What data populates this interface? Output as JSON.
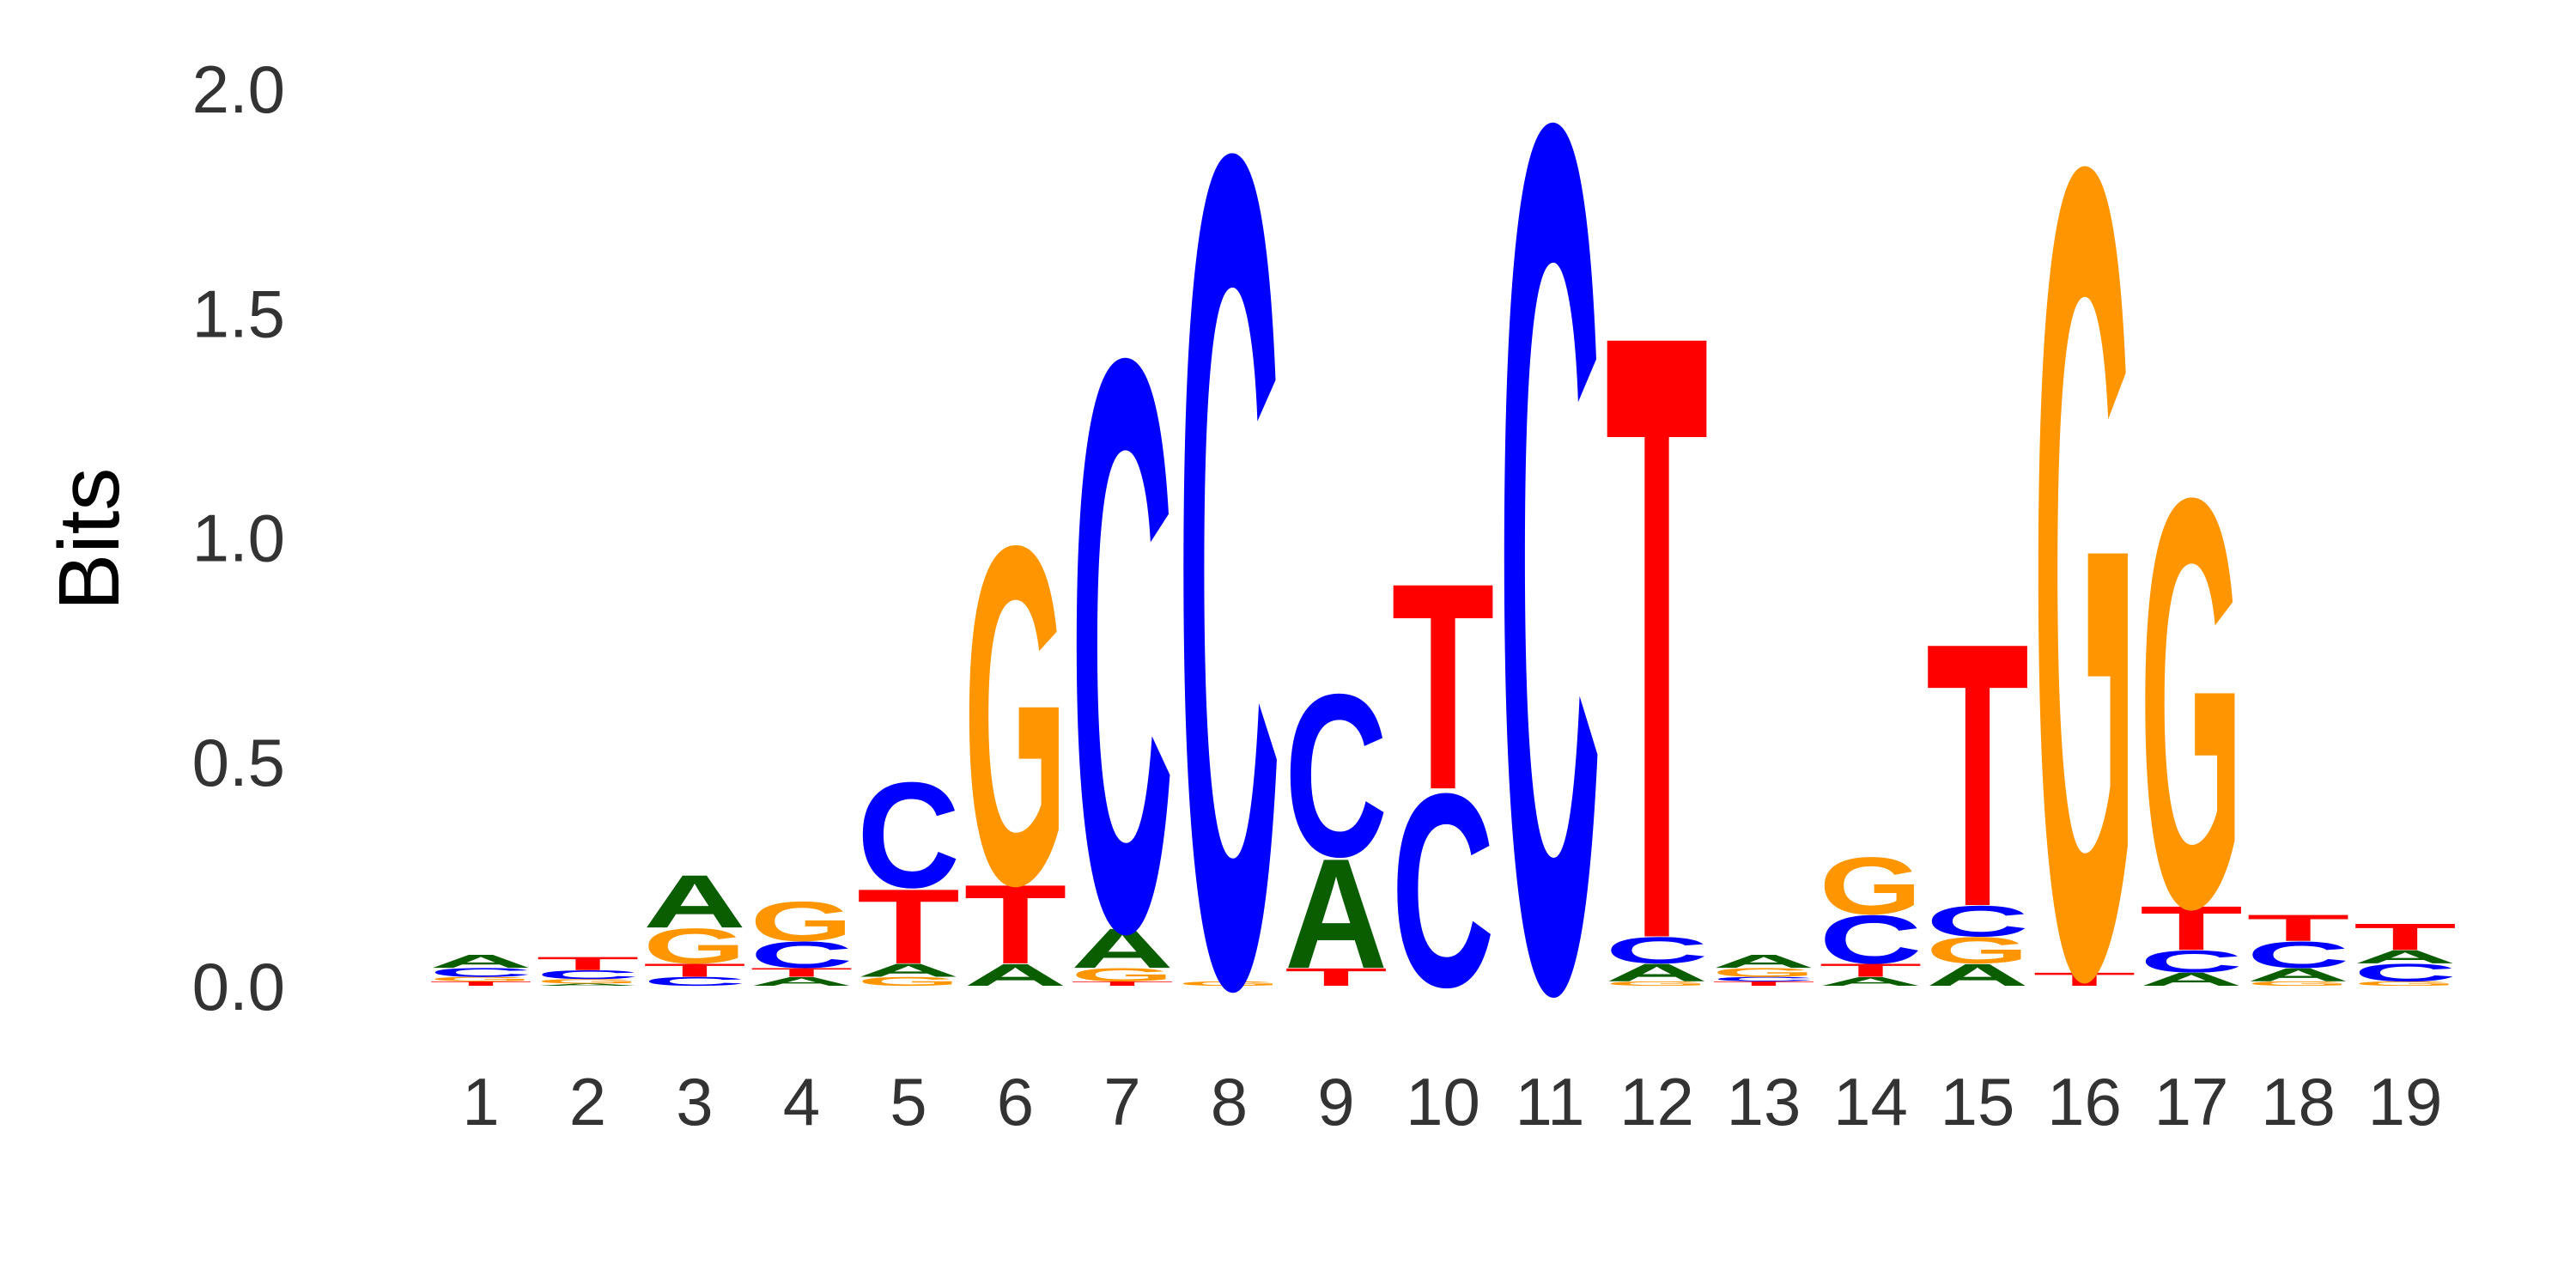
{
  "chart_data": {
    "type": "sequence-logo",
    "ylabel": "Bits",
    "ylim": [
      0,
      2.0
    ],
    "yticks": [
      "0.0",
      "0.5",
      "1.0",
      "1.5",
      "2.0"
    ],
    "grid": false,
    "colors": {
      "A": "#0b5e00",
      "C": "#0000ff",
      "G": "#ff9500",
      "T": "#ff0000"
    },
    "positions": [
      {
        "label": "1",
        "letters": [
          {
            "b": "T",
            "h": 0.01
          },
          {
            "b": "G",
            "h": 0.01
          },
          {
            "b": "C",
            "h": 0.02
          },
          {
            "b": "A",
            "h": 0.03
          }
        ]
      },
      {
        "label": "2",
        "letters": [
          {
            "b": "A",
            "h": 0.005
          },
          {
            "b": "G",
            "h": 0.01
          },
          {
            "b": "C",
            "h": 0.02
          },
          {
            "b": "T",
            "h": 0.03
          }
        ]
      },
      {
        "label": "3",
        "letters": [
          {
            "b": "C",
            "h": 0.02
          },
          {
            "b": "T",
            "h": 0.03
          },
          {
            "b": "G",
            "h": 0.08
          },
          {
            "b": "A",
            "h": 0.12
          }
        ]
      },
      {
        "label": "4",
        "letters": [
          {
            "b": "A",
            "h": 0.02
          },
          {
            "b": "T",
            "h": 0.02
          },
          {
            "b": "C",
            "h": 0.06
          },
          {
            "b": "G",
            "h": 0.09
          }
        ]
      },
      {
        "label": "5",
        "letters": [
          {
            "b": "G",
            "h": 0.02
          },
          {
            "b": "A",
            "h": 0.03
          },
          {
            "b": "T",
            "h": 0.17
          },
          {
            "b": "C",
            "h": 0.24
          }
        ]
      },
      {
        "label": "6",
        "letters": [
          {
            "b": "A",
            "h": 0.05
          },
          {
            "b": "T",
            "h": 0.18
          },
          {
            "b": "G",
            "h": 0.77
          }
        ]
      },
      {
        "label": "7",
        "letters": [
          {
            "b": "T",
            "h": 0.01
          },
          {
            "b": "G",
            "h": 0.03
          },
          {
            "b": "A",
            "h": 0.09
          },
          {
            "b": "C",
            "h": 1.3
          }
        ]
      },
      {
        "label": "8",
        "letters": [
          {
            "b": "G",
            "h": 0.01
          },
          {
            "b": "C",
            "h": 1.89
          }
        ]
      },
      {
        "label": "9",
        "letters": [
          {
            "b": "T",
            "h": 0.04
          },
          {
            "b": "A",
            "h": 0.25
          },
          {
            "b": "C",
            "h": 0.37
          }
        ]
      },
      {
        "label": "10",
        "letters": [
          {
            "b": "C",
            "h": 0.44
          },
          {
            "b": "T",
            "h": 0.47
          }
        ]
      },
      {
        "label": "11",
        "letters": [
          {
            "b": "C",
            "h": 1.97
          }
        ]
      },
      {
        "label": "12",
        "letters": [
          {
            "b": "G",
            "h": 0.01
          },
          {
            "b": "A",
            "h": 0.04
          },
          {
            "b": "C",
            "h": 0.06
          },
          {
            "b": "T",
            "h": 1.38
          }
        ]
      },
      {
        "label": "13",
        "letters": [
          {
            "b": "T",
            "h": 0.01
          },
          {
            "b": "C",
            "h": 0.01
          },
          {
            "b": "G",
            "h": 0.02
          },
          {
            "b": "A",
            "h": 0.03
          }
        ]
      },
      {
        "label": "14",
        "letters": [
          {
            "b": "A",
            "h": 0.02
          },
          {
            "b": "T",
            "h": 0.03
          },
          {
            "b": "C",
            "h": 0.11
          },
          {
            "b": "G",
            "h": 0.13
          }
        ]
      },
      {
        "label": "15",
        "letters": [
          {
            "b": "A",
            "h": 0.05
          },
          {
            "b": "G",
            "h": 0.06
          },
          {
            "b": "C",
            "h": 0.07
          },
          {
            "b": "T",
            "h": 0.6
          }
        ]
      },
      {
        "label": "16",
        "letters": [
          {
            "b": "T",
            "h": 0.03
          },
          {
            "b": "G",
            "h": 1.84
          }
        ]
      },
      {
        "label": "17",
        "letters": [
          {
            "b": "A",
            "h": 0.03
          },
          {
            "b": "C",
            "h": 0.05
          },
          {
            "b": "T",
            "h": 0.1
          },
          {
            "b": "G",
            "h": 0.93
          }
        ]
      },
      {
        "label": "18",
        "letters": [
          {
            "b": "G",
            "h": 0.01
          },
          {
            "b": "A",
            "h": 0.03
          },
          {
            "b": "C",
            "h": 0.06
          },
          {
            "b": "T",
            "h": 0.06
          }
        ]
      },
      {
        "label": "19",
        "letters": [
          {
            "b": "G",
            "h": 0.01
          },
          {
            "b": "C",
            "h": 0.04
          },
          {
            "b": "A",
            "h": 0.03
          },
          {
            "b": "T",
            "h": 0.06
          }
        ]
      }
    ]
  }
}
